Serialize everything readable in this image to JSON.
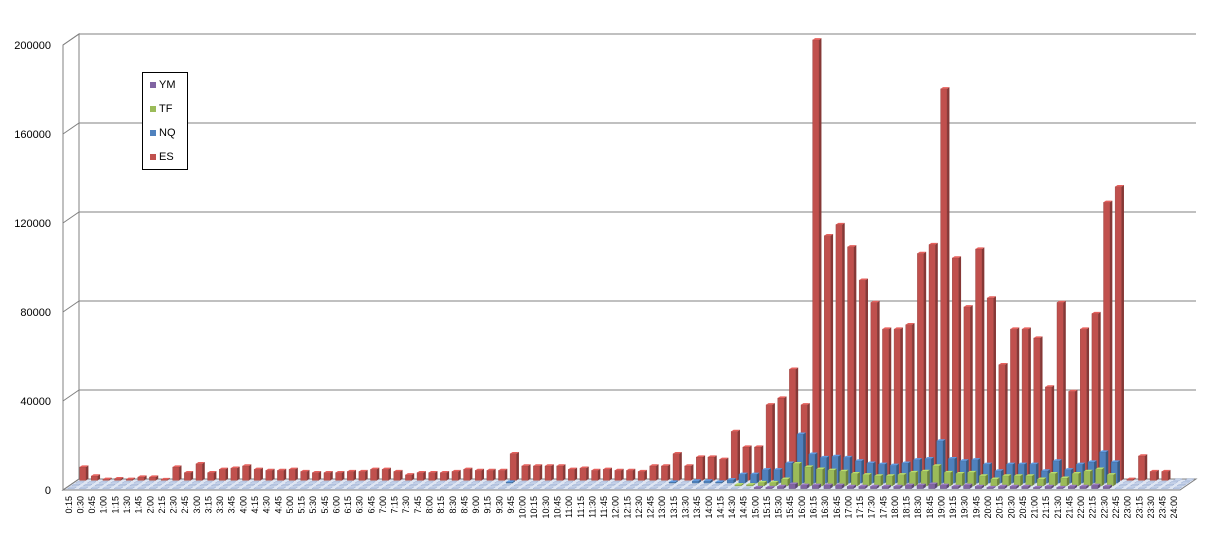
{
  "chart_data": {
    "type": "bar",
    "view": "3d-column",
    "title": "",
    "xlabel": "",
    "ylabel": "",
    "ylim": [
      0,
      200000
    ],
    "y_ticks": [
      "0",
      "40000",
      "80000",
      "120000",
      "160000",
      "200000"
    ],
    "grid": "horizontal",
    "legend_position": "upper-left",
    "categories": [
      "0:15",
      "0:30",
      "0:45",
      "1:00",
      "1:15",
      "1:30",
      "1:45",
      "2:00",
      "2:15",
      "2:30",
      "2:45",
      "3:00",
      "3:15",
      "3:30",
      "3:45",
      "4:00",
      "4:15",
      "4:30",
      "4:45",
      "5:00",
      "5:15",
      "5:30",
      "5:45",
      "6:00",
      "6:15",
      "6:30",
      "6:45",
      "7:00",
      "7:15",
      "7:30",
      "7:45",
      "8:00",
      "8:15",
      "8:30",
      "8:45",
      "9:00",
      "9:15",
      "9:30",
      "9:45",
      "10:00",
      "10:15",
      "10:30",
      "10:45",
      "11:00",
      "11:15",
      "11:30",
      "11:45",
      "12:00",
      "12:15",
      "12:30",
      "12:45",
      "13:00",
      "13:15",
      "13:30",
      "13:45",
      "14:00",
      "14:15",
      "14:30",
      "14:45",
      "15:00",
      "15:15",
      "15:30",
      "15:45",
      "16:00",
      "16:15",
      "16:30",
      "16:45",
      "17:00",
      "17:15",
      "17:30",
      "17:45",
      "18:00",
      "18:15",
      "18:30",
      "18:45",
      "19:00",
      "19:15",
      "19:30",
      "19:45",
      "20:00",
      "20:15",
      "20:30",
      "20:45",
      "21:00",
      "21:15",
      "21:30",
      "21:45",
      "22:00",
      "22:15",
      "22:30",
      "22:45",
      "23:00",
      "23:15",
      "23:30",
      "23:45",
      "24:00"
    ],
    "series": [
      {
        "name": "ES",
        "color": "#C0504D",
        "values": [
          6000,
          2000,
          500,
          800,
          500,
          1500,
          1500,
          400,
          6000,
          3500,
          7500,
          3500,
          5000,
          5500,
          6500,
          5000,
          4500,
          4500,
          5000,
          4000,
          3500,
          3500,
          3500,
          4000,
          4000,
          5000,
          5000,
          4000,
          2500,
          3500,
          3500,
          3500,
          4000,
          5000,
          4500,
          4500,
          4500,
          12000,
          6500,
          6500,
          6500,
          6500,
          5000,
          5500,
          4500,
          5000,
          4500,
          4500,
          4000,
          6500,
          6500,
          12000,
          6500,
          10500,
          10500,
          9500,
          22000,
          15000,
          15000,
          34000,
          37000,
          50000,
          34000,
          198000,
          110000,
          115000,
          105000,
          90000,
          80000,
          68000,
          68000,
          70000,
          102000,
          106000,
          176000,
          100000,
          78000,
          104000,
          82000,
          52000,
          68000,
          68000,
          64000,
          42000,
          80000,
          40000,
          68000,
          75000,
          125000,
          132000,
          500,
          11000,
          4000,
          4000,
          0,
          0
        ]
      },
      {
        "name": "NQ",
        "color": "#4F81BD",
        "values": [
          0,
          0,
          0,
          0,
          0,
          0,
          0,
          0,
          0,
          0,
          0,
          0,
          0,
          0,
          0,
          0,
          0,
          0,
          0,
          0,
          0,
          0,
          0,
          0,
          0,
          0,
          0,
          0,
          0,
          0,
          0,
          0,
          0,
          0,
          0,
          0,
          0,
          500,
          0,
          0,
          0,
          0,
          0,
          0,
          0,
          0,
          0,
          0,
          0,
          0,
          0,
          500,
          0,
          1000,
          1000,
          500,
          1500,
          4000,
          4000,
          6000,
          6000,
          9000,
          22000,
          13000,
          11500,
          12000,
          11500,
          10000,
          9000,
          8500,
          8000,
          9000,
          10500,
          11000,
          19000,
          11000,
          10000,
          10500,
          8500,
          5500,
          8500,
          8500,
          8500,
          5500,
          10000,
          6000,
          8500,
          9500,
          14000,
          9500,
          0,
          0,
          0,
          0,
          0,
          0
        ]
      },
      {
        "name": "TF",
        "color": "#9BBB59",
        "values": [
          0,
          0,
          0,
          0,
          0,
          0,
          0,
          0,
          0,
          0,
          0,
          0,
          0,
          0,
          0,
          0,
          0,
          0,
          0,
          0,
          0,
          0,
          0,
          0,
          0,
          0,
          0,
          0,
          0,
          0,
          0,
          0,
          0,
          0,
          0,
          0,
          0,
          0,
          0,
          0,
          0,
          0,
          0,
          0,
          0,
          0,
          0,
          0,
          0,
          0,
          0,
          0,
          0,
          0,
          0,
          0,
          0,
          500,
          500,
          1500,
          1500,
          3000,
          10000,
          8500,
          7500,
          7000,
          6500,
          5500,
          5000,
          4500,
          4500,
          5000,
          6000,
          6500,
          9000,
          6000,
          5500,
          6000,
          4500,
          3000,
          4500,
          4500,
          4500,
          3000,
          5500,
          3500,
          5500,
          6500,
          7500,
          5000,
          0,
          0,
          0,
          0,
          0,
          0
        ]
      },
      {
        "name": "YM",
        "color": "#8064A2",
        "values": [
          0,
          0,
          0,
          0,
          0,
          0,
          0,
          0,
          0,
          0,
          0,
          0,
          0,
          0,
          0,
          0,
          0,
          0,
          0,
          0,
          0,
          0,
          0,
          0,
          0,
          0,
          0,
          0,
          0,
          0,
          0,
          0,
          0,
          0,
          0,
          0,
          0,
          0,
          0,
          0,
          0,
          0,
          0,
          0,
          0,
          0,
          0,
          0,
          0,
          0,
          0,
          0,
          0,
          0,
          0,
          0,
          0,
          0,
          0,
          500,
          500,
          1000,
          2000,
          1500,
          1500,
          1500,
          1500,
          1000,
          1000,
          1000,
          1000,
          1000,
          1500,
          1500,
          2000,
          1500,
          1000,
          1500,
          1000,
          500,
          1000,
          1000,
          1000,
          500,
          1000,
          500,
          1000,
          1000,
          1500,
          1000,
          0,
          0,
          0,
          0,
          0,
          0
        ]
      }
    ],
    "legend": [
      {
        "name": "YM",
        "color": "#8064A2"
      },
      {
        "name": "TF",
        "color": "#9BBB59"
      },
      {
        "name": "NQ",
        "color": "#4F81BD"
      },
      {
        "name": "ES",
        "color": "#C0504D"
      }
    ]
  }
}
